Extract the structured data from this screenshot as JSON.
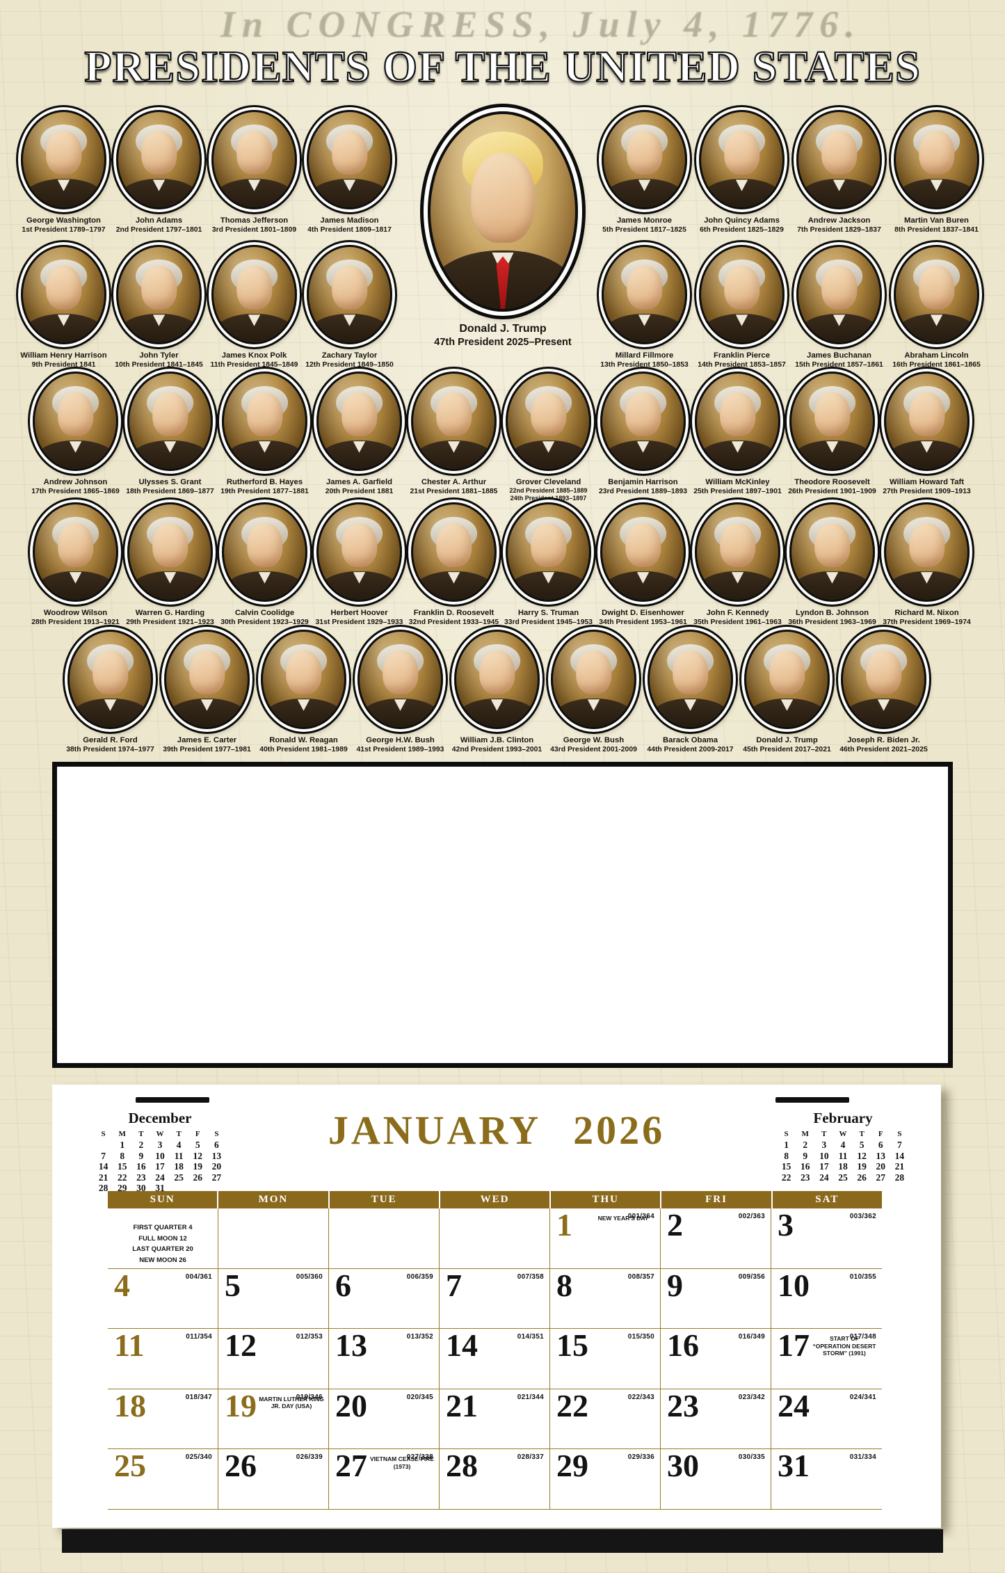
{
  "title": "PRESIDENTS OF THE UNITED STATES",
  "watermark": {
    "header": "In CONGRESS, July 4, 1776."
  },
  "colors": {
    "accent_gold": "#8a6c1b",
    "header_brown": "#8a681c",
    "grid_line": "#9a7a22",
    "parchment": "#ece6cc"
  },
  "portraits": {
    "center": {
      "name": "Donald J. Trump",
      "caption": "47th President 2025–Present"
    },
    "row1_left": [
      {
        "name": "George Washington",
        "caption": "1st President 1789–1797"
      },
      {
        "name": "John Adams",
        "caption": "2nd President 1797–1801"
      },
      {
        "name": "Thomas Jefferson",
        "caption": "3rd President 1801–1809"
      },
      {
        "name": "James Madison",
        "caption": "4th President 1809–1817"
      }
    ],
    "row1_right": [
      {
        "name": "James Monroe",
        "caption": "5th President 1817–1825"
      },
      {
        "name": "John Quincy Adams",
        "caption": "6th President 1825–1829"
      },
      {
        "name": "Andrew Jackson",
        "caption": "7th President 1829–1837"
      },
      {
        "name": "Martin Van Buren",
        "caption": "8th President 1837–1841"
      }
    ],
    "row2_left": [
      {
        "name": "William Henry Harrison",
        "caption": "9th President 1841"
      },
      {
        "name": "John Tyler",
        "caption": "10th President 1841–1845"
      },
      {
        "name": "James Knox Polk",
        "caption": "11th President 1845–1849"
      },
      {
        "name": "Zachary Taylor",
        "caption": "12th President 1849–1850"
      }
    ],
    "row2_right": [
      {
        "name": "Millard Fillmore",
        "caption": "13th President 1850–1853"
      },
      {
        "name": "Franklin Pierce",
        "caption": "14th President 1853–1857"
      },
      {
        "name": "James Buchanan",
        "caption": "15th President 1857–1861"
      },
      {
        "name": "Abraham Lincoln",
        "caption": "16th President 1861–1865"
      }
    ],
    "row3": [
      {
        "name": "Andrew Johnson",
        "caption": "17th President 1865–1869"
      },
      {
        "name": "Ulysses S. Grant",
        "caption": "18th President 1869–1877"
      },
      {
        "name": "Rutherford B. Hayes",
        "caption": "19th President 1877–1881"
      },
      {
        "name": "James A. Garfield",
        "caption": "20th President 1881"
      },
      {
        "name": "Chester A. Arthur",
        "caption": "21st President 1881–1885"
      },
      {
        "name": "Grover Cleveland",
        "caption": "22nd President 1885–1889",
        "caption2": "24th President 1893–1897"
      },
      {
        "name": "Benjamin Harrison",
        "caption": "23rd President 1889–1893"
      },
      {
        "name": "William McKinley",
        "caption": "25th President 1897–1901"
      },
      {
        "name": "Theodore Roosevelt",
        "caption": "26th President 1901–1909"
      },
      {
        "name": "William Howard Taft",
        "caption": "27th President 1909–1913"
      }
    ],
    "row4": [
      {
        "name": "Woodrow Wilson",
        "caption": "28th President 1913–1921"
      },
      {
        "name": "Warren G. Harding",
        "caption": "29th President 1921–1923"
      },
      {
        "name": "Calvin Coolidge",
        "caption": "30th President 1923–1929"
      },
      {
        "name": "Herbert Hoover",
        "caption": "31st President 1929–1933"
      },
      {
        "name": "Franklin D. Roosevelt",
        "caption": "32nd President 1933–1945"
      },
      {
        "name": "Harry S. Truman",
        "caption": "33rd President 1945–1953"
      },
      {
        "name": "Dwight D. Eisenhower",
        "caption": "34th President 1953–1961"
      },
      {
        "name": "John F. Kennedy",
        "caption": "35th President 1961–1963"
      },
      {
        "name": "Lyndon B. Johnson",
        "caption": "36th President 1963–1969"
      },
      {
        "name": "Richard M. Nixon",
        "caption": "37th President 1969–1974"
      }
    ],
    "row5": [
      {
        "name": "Gerald R. Ford",
        "caption": "38th President 1974–1977"
      },
      {
        "name": "James E. Carter",
        "caption": "39th President 1977–1981"
      },
      {
        "name": "Ronald W. Reagan",
        "caption": "40th President 1981–1989"
      },
      {
        "name": "George H.W. Bush",
        "caption": "41st President 1989–1993"
      },
      {
        "name": "William J.B. Clinton",
        "caption": "42nd President 1993–2001"
      },
      {
        "name": "George W. Bush",
        "caption": "43rd President 2001-2009"
      },
      {
        "name": "Barack Obama",
        "caption": "44th President 2009-2017"
      },
      {
        "name": "Donald J. Trump",
        "caption": "45th President 2017–2021"
      },
      {
        "name": "Joseph R. Biden Jr.",
        "caption": "46th President 2021–2025"
      }
    ]
  },
  "calendar": {
    "month": "JANUARY",
    "year": "2026",
    "day_headers": [
      "SUN",
      "MON",
      "TUE",
      "WED",
      "THU",
      "FRI",
      "SAT"
    ],
    "moon_phases": [
      "FIRST QUARTER 4",
      "FULL MOON 12",
      "LAST QUARTER 20",
      "NEW MOON 26"
    ],
    "mini_prev": {
      "title": "December",
      "day_headers": [
        "S",
        "M",
        "T",
        "W",
        "T",
        "F",
        "S"
      ],
      "weeks": [
        [
          "",
          "1",
          "2",
          "3",
          "4",
          "5",
          "6"
        ],
        [
          "7",
          "8",
          "9",
          "10",
          "11",
          "12",
          "13"
        ],
        [
          "14",
          "15",
          "16",
          "17",
          "18",
          "19",
          "20"
        ],
        [
          "21",
          "22",
          "23",
          "24",
          "25",
          "26",
          "27"
        ],
        [
          "28",
          "29",
          "30",
          "31",
          "",
          "",
          ""
        ]
      ]
    },
    "mini_next": {
      "title": "February",
      "day_headers": [
        "S",
        "M",
        "T",
        "W",
        "T",
        "F",
        "S"
      ],
      "weeks": [
        [
          "1",
          "2",
          "3",
          "4",
          "5",
          "6",
          "7"
        ],
        [
          "8",
          "9",
          "10",
          "11",
          "12",
          "13",
          "14"
        ],
        [
          "15",
          "16",
          "17",
          "18",
          "19",
          "20",
          "21"
        ],
        [
          "22",
          "23",
          "24",
          "25",
          "26",
          "27",
          "28"
        ]
      ]
    },
    "weeks": [
      [
        {
          "moon": true
        },
        {},
        {},
        {},
        {
          "d": "1",
          "o": "001/364",
          "h": "NEW YEAR'S DAY",
          "g": true
        },
        {
          "d": "2",
          "o": "002/363"
        },
        {
          "d": "3",
          "o": "003/362"
        }
      ],
      [
        {
          "d": "4",
          "o": "004/361",
          "g": true
        },
        {
          "d": "5",
          "o": "005/360"
        },
        {
          "d": "6",
          "o": "006/359"
        },
        {
          "d": "7",
          "o": "007/358"
        },
        {
          "d": "8",
          "o": "008/357"
        },
        {
          "d": "9",
          "o": "009/356"
        },
        {
          "d": "10",
          "o": "010/355"
        }
      ],
      [
        {
          "d": "11",
          "o": "011/354",
          "g": true
        },
        {
          "d": "12",
          "o": "012/353"
        },
        {
          "d": "13",
          "o": "013/352"
        },
        {
          "d": "14",
          "o": "014/351"
        },
        {
          "d": "15",
          "o": "015/350"
        },
        {
          "d": "16",
          "o": "016/349"
        },
        {
          "d": "17",
          "o": "017/348",
          "h": "START OF “OPERATION DESERT STORM” (1991)"
        }
      ],
      [
        {
          "d": "18",
          "o": "018/347",
          "g": true
        },
        {
          "d": "19",
          "o": "019/346",
          "h": "MARTIN LUTHER KING JR. DAY (USA)",
          "g": true
        },
        {
          "d": "20",
          "o": "020/345"
        },
        {
          "d": "21",
          "o": "021/344"
        },
        {
          "d": "22",
          "o": "022/343"
        },
        {
          "d": "23",
          "o": "023/342"
        },
        {
          "d": "24",
          "o": "024/341"
        }
      ],
      [
        {
          "d": "25",
          "o": "025/340",
          "g": true
        },
        {
          "d": "26",
          "o": "026/339"
        },
        {
          "d": "27",
          "o": "027/338",
          "h": "VIETNAM CEASE-FIRE (1973)"
        },
        {
          "d": "28",
          "o": "028/337"
        },
        {
          "d": "29",
          "o": "029/336"
        },
        {
          "d": "30",
          "o": "030/335"
        },
        {
          "d": "31",
          "o": "031/334"
        }
      ]
    ]
  }
}
